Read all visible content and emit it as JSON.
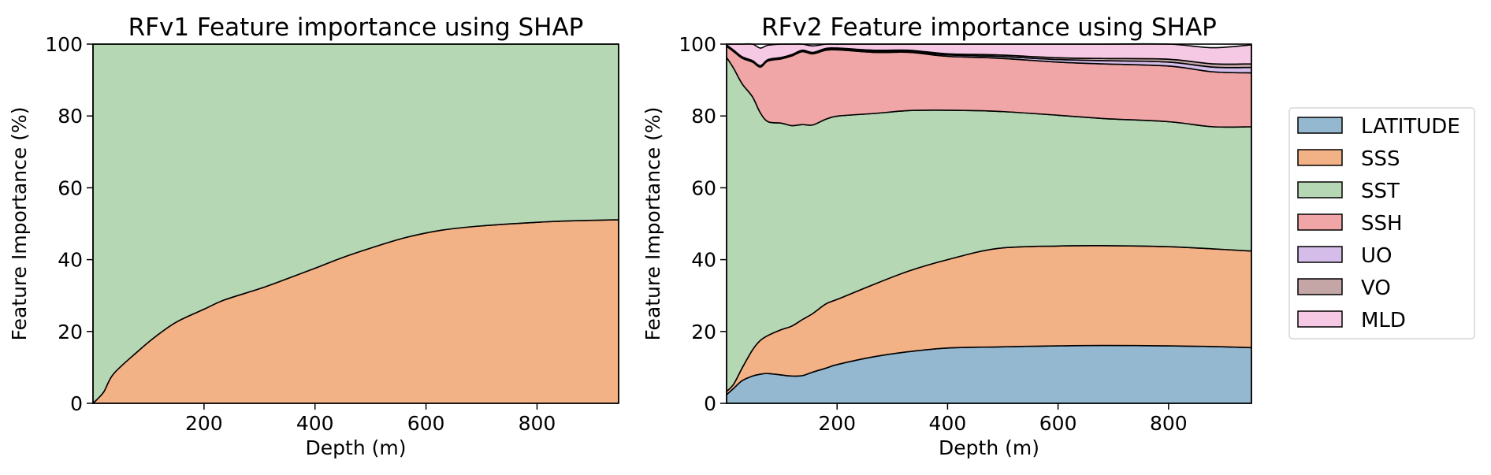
{
  "chart_data": [
    {
      "type": "area",
      "stacked": true,
      "title": "RFv1 Feature importance using SHAP",
      "xlabel": "Depth (m)",
      "ylabel": "Feature Importance (%)",
      "xlim": [
        0,
        947
      ],
      "ylim": [
        0,
        100
      ],
      "xticks": [
        200,
        400,
        600,
        800
      ],
      "yticks": [
        0,
        20,
        40,
        60,
        80,
        100
      ],
      "grid": false,
      "x": [
        0,
        19,
        37,
        81,
        112,
        150,
        200,
        237,
        300,
        350,
        400,
        450,
        506,
        562,
        628,
        700,
        800,
        862,
        947
      ],
      "series": [
        {
          "name": "SSS",
          "color": "#f3b186",
          "values": [
            0,
            3.1,
            8.2,
            14.5,
            18.5,
            22.6,
            26.2,
            28.8,
            31.9,
            34.7,
            37.6,
            40.6,
            43.5,
            46.1,
            48.2,
            49.4,
            50.4,
            50.8,
            51.1
          ]
        },
        {
          "name": "SST",
          "color": "#b6d7b4",
          "values": [
            100,
            96.9,
            91.8,
            85.5,
            81.5,
            77.4,
            73.8,
            71.2,
            68.1,
            65.3,
            62.4,
            59.4,
            56.5,
            53.9,
            51.8,
            50.6,
            49.6,
            49.2,
            48.9
          ]
        }
      ]
    },
    {
      "type": "area",
      "stacked": true,
      "title": "RFv2 Feature importance using SHAP",
      "xlabel": "Depth (m)",
      "ylabel": "Feature Importance (%)",
      "xlim": [
        0,
        950
      ],
      "ylim": [
        0,
        100
      ],
      "xticks": [
        200,
        400,
        600,
        800
      ],
      "yticks": [
        0,
        20,
        40,
        60,
        80,
        100
      ],
      "grid": false,
      "legend_position": "right",
      "x": [
        0,
        13,
        28,
        47,
        61,
        75,
        99,
        118,
        137,
        156,
        180,
        203,
        268,
        331,
        400,
        490,
        600,
        681,
        800,
        880,
        950
      ],
      "series": [
        {
          "name": "LATITUDE",
          "color": "#95b8d1",
          "values": [
            2.4,
            4.2,
            6.3,
            7.6,
            8.1,
            8.3,
            7.9,
            7.6,
            7.7,
            8.7,
            9.8,
            10.9,
            13.0,
            14.4,
            15.4,
            15.7,
            16.0,
            16.1,
            16.0,
            15.8,
            15.5
          ]
        },
        {
          "name": "SSS",
          "color": "#f3b186",
          "values": [
            0.9,
            1.2,
            3.5,
            7.3,
            9.4,
            10.6,
            12.6,
            13.9,
            15.6,
            16.3,
            17.9,
            18.2,
            20.2,
            22.5,
            24.6,
            27.4,
            27.8,
            27.8,
            27.6,
            27.2,
            26.9
          ]
        },
        {
          "name": "SST",
          "color": "#b6d7b4",
          "values": [
            93.0,
            87.8,
            79.2,
            70.4,
            63.4,
            59.5,
            57.5,
            55.8,
            54.3,
            52.5,
            51.4,
            50.9,
            47.5,
            44.6,
            41.6,
            38.2,
            36.4,
            35.4,
            34.8,
            34.0,
            34.6
          ]
        },
        {
          "name": "SSH",
          "color": "#f0a6a6",
          "values": [
            3.1,
            4.7,
            7.1,
            9.7,
            12.7,
            16.9,
            17.9,
            19.4,
            20.3,
            19.8,
            19.2,
            18.4,
            17.0,
            16.2,
            15.0,
            14.8,
            14.8,
            15.2,
            15.5,
            15.3,
            15.0
          ]
        },
        {
          "name": "UO",
          "color": "#d4bde9",
          "values": [
            0.2,
            0.2,
            0.2,
            0.2,
            0.2,
            0.2,
            0.2,
            0.2,
            0.2,
            0.2,
            0.3,
            0.3,
            0.3,
            0.3,
            0.4,
            0.5,
            0.7,
            0.9,
            1.1,
            1.3,
            1.5
          ]
        },
        {
          "name": "VO",
          "color": "#c5a6a6",
          "values": [
            0.2,
            0.2,
            0.2,
            0.2,
            0.2,
            0.2,
            0.2,
            0.2,
            0.2,
            0.2,
            0.2,
            0.2,
            0.3,
            0.3,
            0.3,
            0.4,
            0.5,
            0.6,
            0.8,
            0.9,
            1.0
          ]
        },
        {
          "name": "MLD",
          "color": "#f5c8e3",
          "values": [
            0.2,
            1.7,
            3.5,
            4.6,
            4.9,
            4.0,
            3.7,
            2.9,
            2.0,
            1.8,
            1.8,
            1.8,
            1.9,
            2.0,
            2.7,
            3.0,
            3.8,
            4.0,
            4.2,
            4.5,
            5.3
          ]
        }
      ]
    }
  ]
}
